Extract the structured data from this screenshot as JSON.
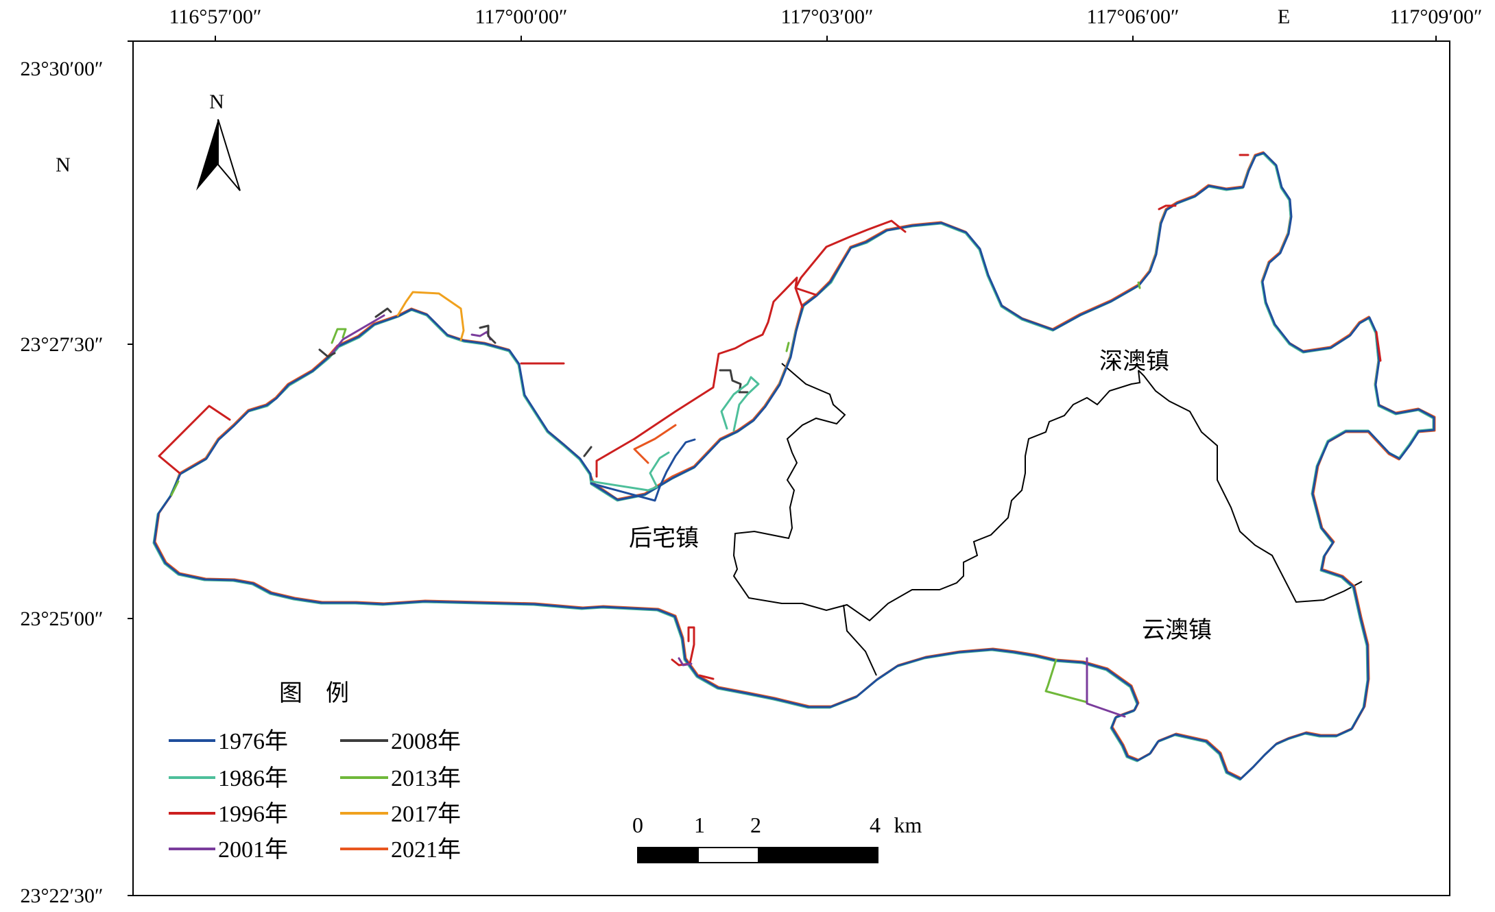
{
  "top_ticks": [
    "116°57′00″",
    "117°00′00″",
    "117°03′00″",
    "117°06′00″",
    "117°09′00″"
  ],
  "left_ticks": [
    "23°30′00″",
    "23°27′30″",
    "23°25′00″",
    "23°22′30″"
  ],
  "axis_letters": {
    "east": "E",
    "north": "N"
  },
  "north_arrow": {
    "label": "N",
    "icon": "north-arrow-icon"
  },
  "towns": [
    "深澳镇",
    "后宅镇",
    "云澳镇"
  ],
  "legend": {
    "title": "图　例",
    "items": [
      {
        "label": "1976年",
        "color": "#1f4e9c"
      },
      {
        "label": "1986年",
        "color": "#4dbf9a"
      },
      {
        "label": "1996年",
        "color": "#cc1f1f"
      },
      {
        "label": "2001年",
        "color": "#7a3c9c"
      },
      {
        "label": "2008年",
        "color": "#3d3d3d"
      },
      {
        "label": "2013年",
        "color": "#6fb83a"
      },
      {
        "label": "2017年",
        "color": "#f0a11e"
      },
      {
        "label": "2021年",
        "color": "#e8561f"
      }
    ]
  },
  "scale_bar": {
    "ticks": [
      "0",
      "1",
      "2",
      "4"
    ],
    "unit": "km"
  }
}
